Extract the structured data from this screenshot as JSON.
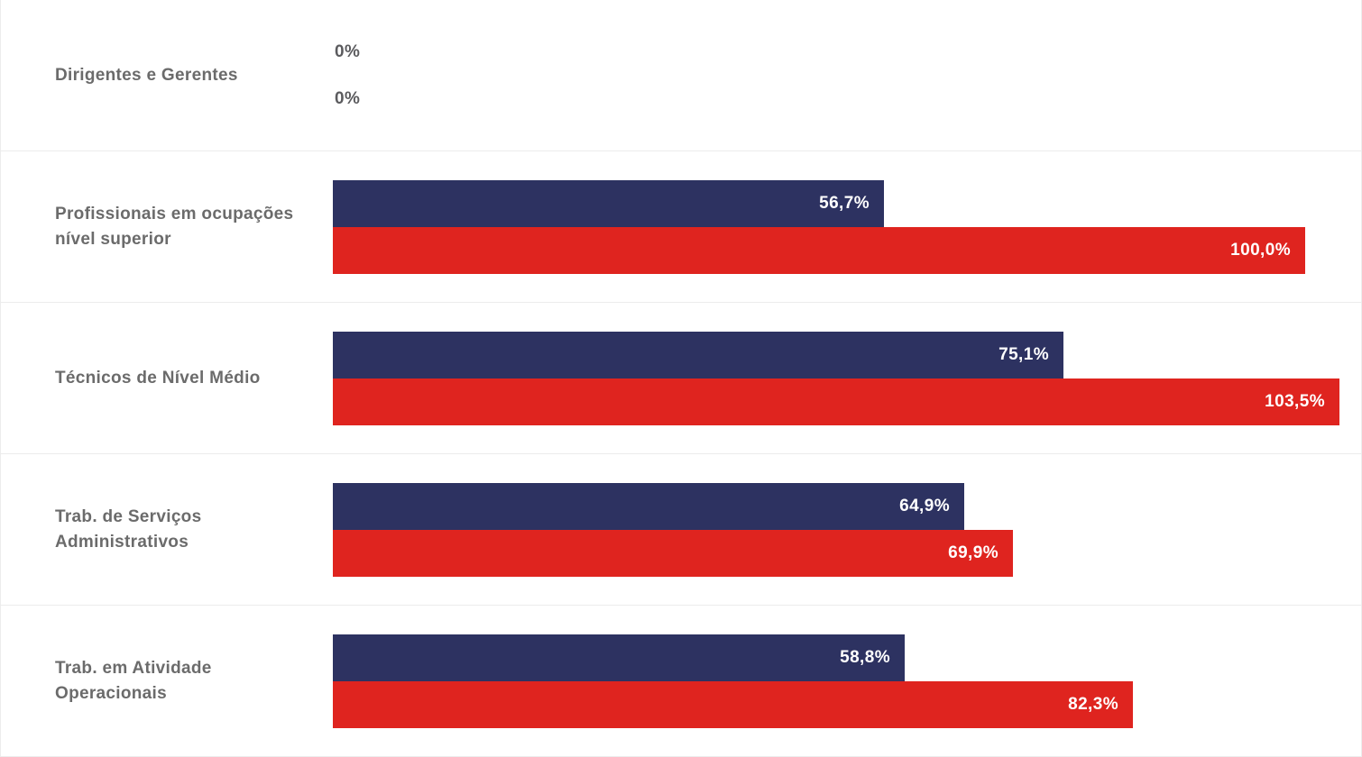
{
  "chart_data": {
    "type": "bar",
    "orientation": "horizontal",
    "title": "",
    "xlabel": "",
    "ylabel": "",
    "categories": [
      "Dirigentes e Gerentes",
      "Profissionais em ocupações nível superior",
      "Técnicos de Nível Médio",
      "Trab. de Serviços Administrativos",
      "Trab. em Atividade Operacionais"
    ],
    "series": [
      {
        "color": "#2d3261",
        "values": [
          0,
          56.7,
          75.1,
          64.9,
          58.8
        ],
        "value_labels": [
          "0%",
          "56,7%",
          "75,1%",
          "64,9%",
          "58,8%"
        ]
      },
      {
        "color": "#df241f",
        "values": [
          0,
          100.0,
          103.5,
          69.9,
          82.3
        ],
        "value_labels": [
          "0%",
          "100,0%",
          "103,5%",
          "69,9%",
          "82,3%"
        ]
      }
    ],
    "xlim": [
      0,
      103.5
    ],
    "grid": false,
    "legend_position": "none",
    "colors": {
      "series1_bar": "#2d3261",
      "series2_bar": "#df241f",
      "category_label_text": "#6b6b6b",
      "zero_value_text": "#5b5b5e",
      "bar_value_text": "#ffffff",
      "row_separator": "#ececec",
      "background": "#ffffff"
    }
  }
}
